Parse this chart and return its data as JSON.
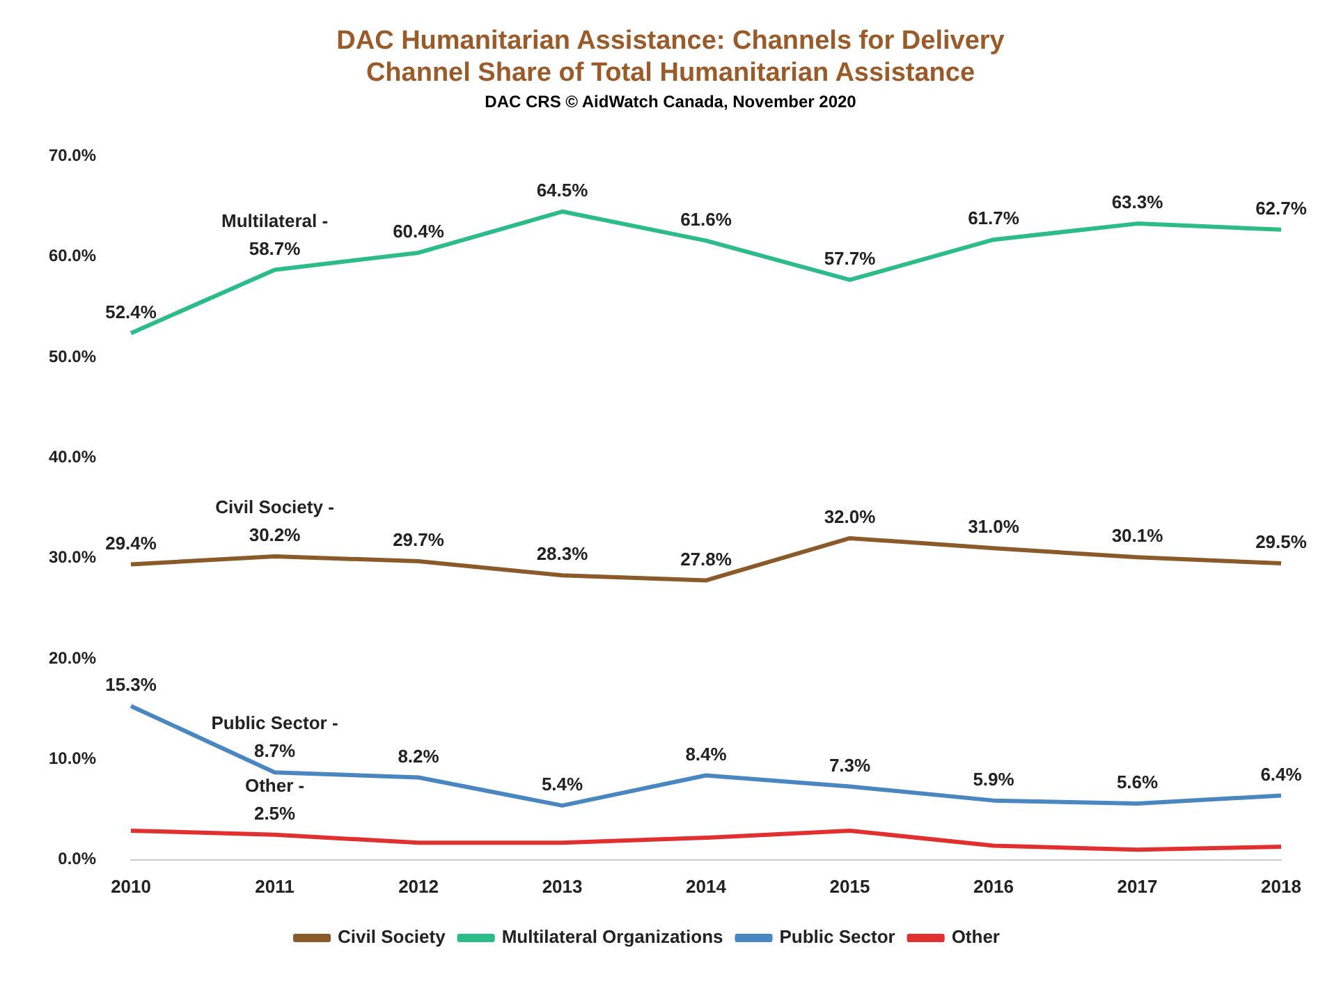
{
  "chart_data": {
    "type": "line",
    "title": "DAC Humanitarian Assistance:  Channels for Delivery",
    "subtitle": "Channel Share of Total Humanitarian Assistance",
    "annotations": [
      "DAC CRS    © AidWatch Canada, November 2020",
      {
        "text": "Civil Society -",
        "x": "2011",
        "y": 30.2
      },
      {
        "text": "Multilateral -",
        "x": "2011",
        "y": 58.7
      },
      {
        "text": "Public Sector -",
        "x": "2011",
        "y": 8.7
      },
      {
        "text": "Other -",
        "x": "2011",
        "y": 2.5
      }
    ],
    "categories": [
      "2010",
      "2011",
      "2012",
      "2013",
      "2014",
      "2015",
      "2016",
      "2017",
      "2018"
    ],
    "series": [
      {
        "name": "Civil Society",
        "color": "#8b5a2b",
        "values": [
          29.4,
          30.2,
          29.7,
          28.3,
          27.8,
          32.0,
          31.0,
          30.1,
          29.5
        ],
        "value_labels": [
          "29.4%",
          "30.2%",
          "29.7%",
          "28.3%",
          "27.8%",
          "32.0%",
          "31.0%",
          "30.1%",
          "29.5%"
        ]
      },
      {
        "name": "Multilateral Organizations",
        "color": "#2dbb88",
        "values": [
          52.4,
          58.7,
          60.4,
          64.5,
          61.6,
          57.7,
          61.7,
          63.3,
          62.7
        ],
        "value_labels": [
          "52.4%",
          "58.7%",
          "60.4%",
          "64.5%",
          "61.6%",
          "57.7%",
          "61.7%",
          "63.3%",
          "62.7%"
        ]
      },
      {
        "name": "Public Sector",
        "color": "#4a86c0",
        "values": [
          15.3,
          8.7,
          8.2,
          5.4,
          8.4,
          7.3,
          5.9,
          5.6,
          6.4
        ],
        "value_labels": [
          "15.3%",
          "8.7%",
          "8.2%",
          "5.4%",
          "8.4%",
          "7.3%",
          "5.9%",
          "5.6%",
          "6.4%"
        ]
      },
      {
        "name": "Other",
        "color": "#e03030",
        "values": [
          2.9,
          2.5,
          1.7,
          1.7,
          2.2,
          2.9,
          1.4,
          1.0,
          1.3
        ],
        "value_labels": [
          null,
          "2.5%",
          null,
          null,
          null,
          null,
          null,
          null,
          null
        ]
      }
    ],
    "ylim": [
      0,
      70
    ],
    "yticks": [
      {
        "value": 0,
        "label": "0.0%"
      },
      {
        "value": 10,
        "label": "10.0%"
      },
      {
        "value": 20,
        "label": "20.0%"
      },
      {
        "value": 30,
        "label": "30.0%"
      },
      {
        "value": 40,
        "label": "40.0%"
      },
      {
        "value": 50,
        "label": "50.0%"
      },
      {
        "value": 60,
        "label": "60.0%"
      },
      {
        "value": 70,
        "label": "70.0%"
      }
    ],
    "grid": false,
    "legend": "bottom",
    "marker": "none",
    "line_style": "solid"
  }
}
